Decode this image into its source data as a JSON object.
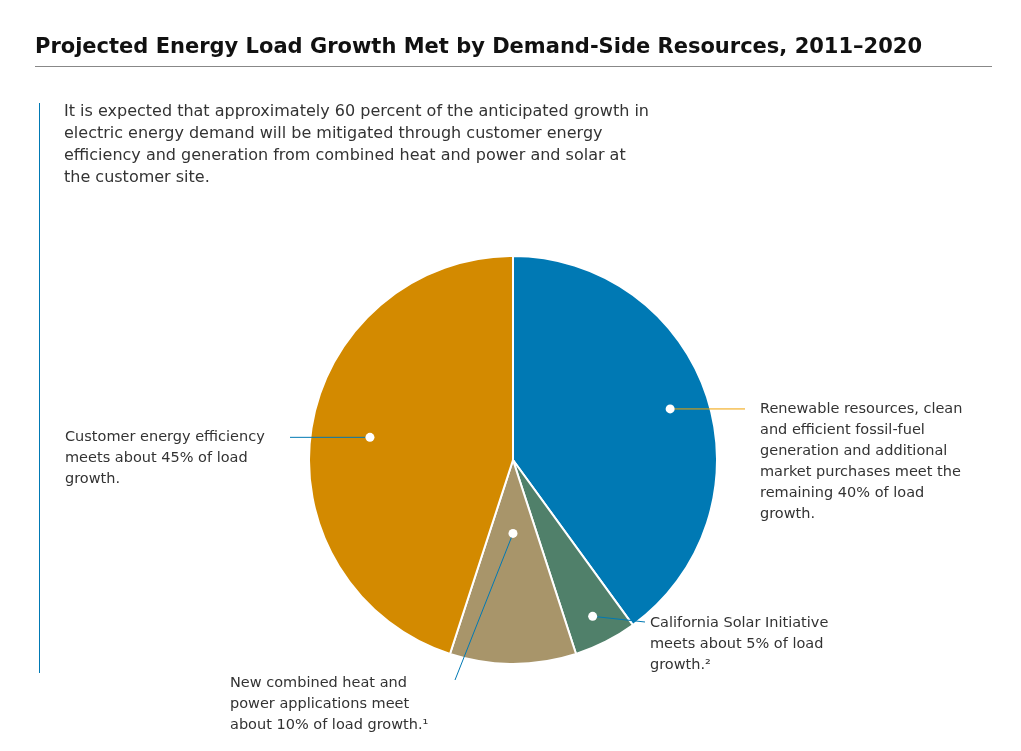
{
  "chart_data": {
    "type": "pie",
    "title": "Projected Energy Load Growth Met by Demand-Side Resources, 2011–2020",
    "subtitle": "It is expected that approximately 60 percent of the anticipated growth in electric energy demand will be mitigated through customer energy efficiency and generation from combined heat and power and solar at the customer site.",
    "categories": [
      "Renewable resources, clean and efficient fossil-fuel generation and additional market purchases meet the remaining 40% of load growth.",
      "California Solar Initiative meets about 5% of load growth.²",
      "New combined heat and power applications meet about 10% of load growth.¹",
      "Customer energy efficiency meets about 45% of load growth."
    ],
    "values": [
      40,
      5,
      10,
      45
    ],
    "colors": [
      "#0079b4",
      "#50806a",
      "#a8956a",
      "#d38a00"
    ],
    "legend": false
  }
}
